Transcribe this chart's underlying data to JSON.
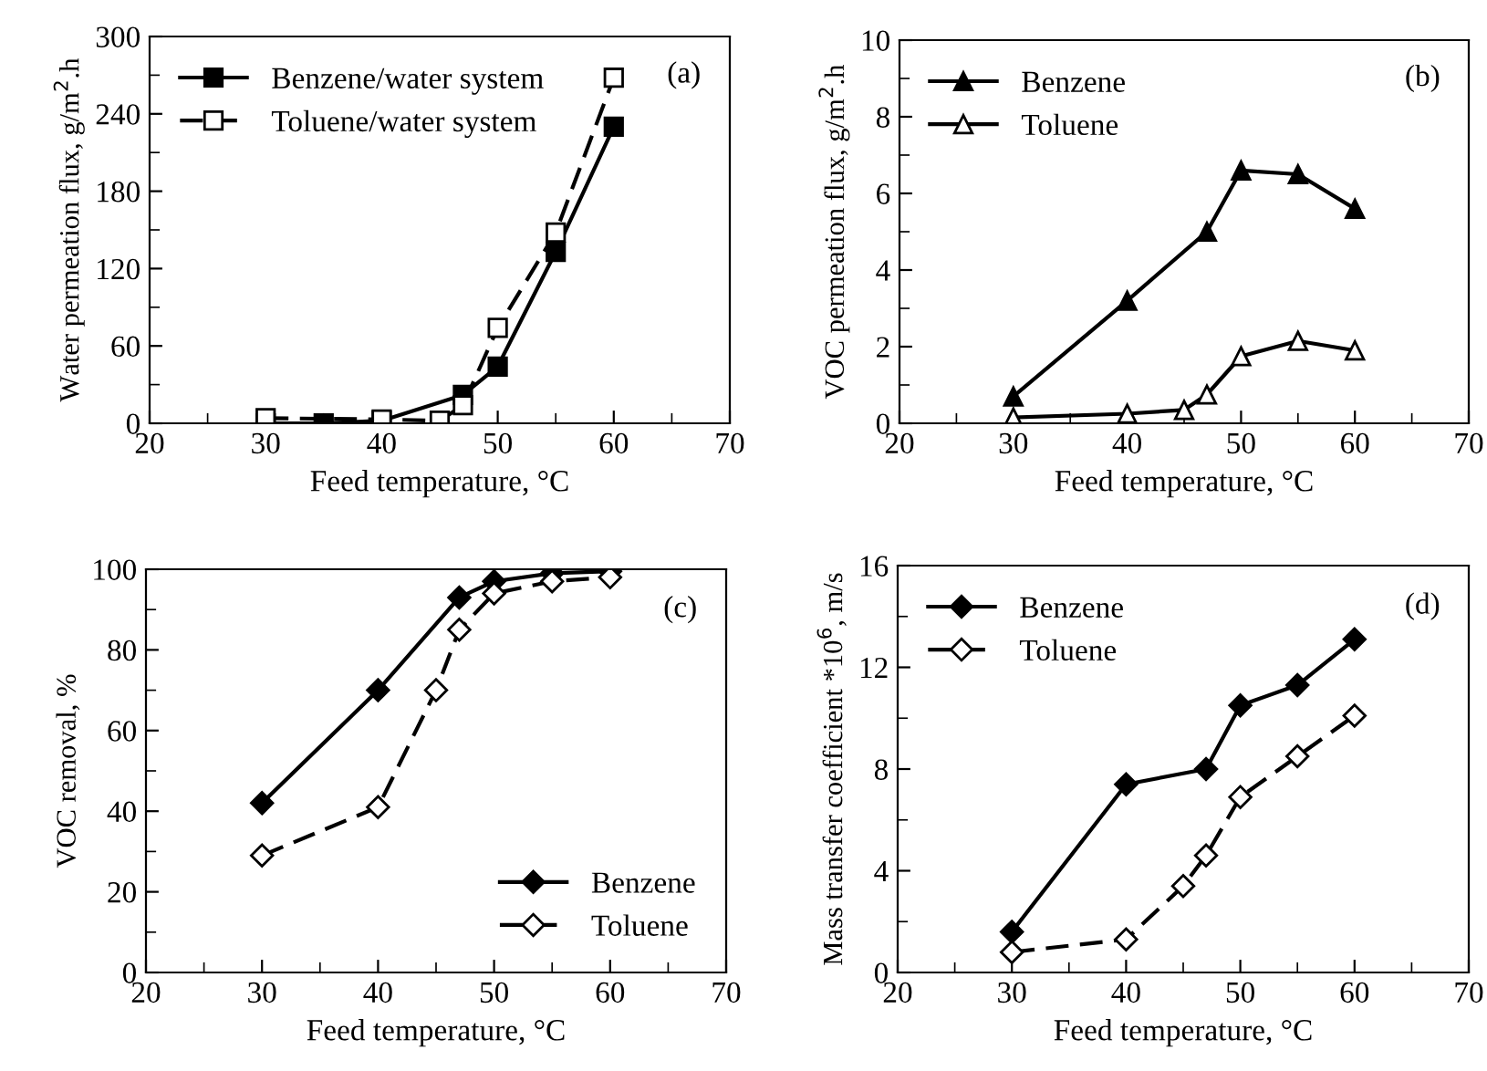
{
  "chart_data": [
    {
      "type": "line",
      "xlabel": "Feed temperature, °C",
      "ylabel": "Water permeation flux, g/m$^{2}$.h",
      "xlim": [
        20,
        70
      ],
      "xticks": [
        20,
        30,
        40,
        50,
        60,
        70
      ],
      "ylim": [
        0,
        300
      ],
      "yticks": [
        0,
        60,
        120,
        180,
        240,
        300
      ],
      "legend": "top left",
      "grid": false,
      "annotations": [
        "(a)"
      ],
      "series": [
        {
          "name": "Benzene/water system",
          "color": "#000000",
          "marker": "square",
          "line_style": "solid",
          "x": [
            30,
            35,
            40,
            47,
            50,
            55,
            60
          ],
          "values": [
            0,
            0,
            2,
            22,
            44,
            133,
            230
          ]
        },
        {
          "name": "Toluene/water system",
          "color": "#000000",
          "marker": "square",
          "line_style": "dashed",
          "x": [
            30,
            40,
            45,
            47,
            50,
            55,
            60
          ],
          "values": [
            4,
            3,
            2,
            14,
            74,
            148,
            268
          ]
        }
      ]
    },
    {
      "type": "line",
      "xlabel": "Feed temperature, °C",
      "ylabel": "VOC permeation flux, g/m$^{2}$.h",
      "xlim": [
        20,
        70
      ],
      "xticks": [
        20,
        30,
        40,
        50,
        60,
        70
      ],
      "ylim": [
        0,
        10
      ],
      "yticks": [
        0,
        2,
        4,
        6,
        8,
        10
      ],
      "legend": "top left",
      "grid": false,
      "annotations": [
        "(b)"
      ],
      "series": [
        {
          "name": "Benzene",
          "color": "#000000",
          "marker": "triangle",
          "line_style": "solid",
          "x": [
            30,
            40,
            47,
            50,
            55,
            60
          ],
          "values": [
            0.7,
            3.2,
            5.0,
            6.6,
            6.5,
            5.6
          ]
        },
        {
          "name": "Toluene",
          "color": "#000000",
          "marker": "triangle",
          "line_style": "solid",
          "x": [
            30,
            40,
            45,
            47,
            50,
            55,
            60
          ],
          "values": [
            0.15,
            0.25,
            0.35,
            0.75,
            1.75,
            2.15,
            1.9
          ]
        }
      ]
    },
    {
      "type": "line",
      "xlabel": "Feed temperature, °C",
      "ylabel": "VOC removal, %",
      "xlim": [
        20,
        70
      ],
      "xticks": [
        20,
        30,
        40,
        50,
        60,
        70
      ],
      "ylim": [
        0,
        100
      ],
      "yticks": [
        0,
        20,
        40,
        60,
        80,
        100
      ],
      "legend": "bottom right",
      "grid": false,
      "annotations": [
        "(c)"
      ],
      "series": [
        {
          "name": "Benzene",
          "color": "#000000",
          "marker": "diamond",
          "line_style": "solid",
          "x": [
            30,
            40,
            47,
            50,
            55,
            60
          ],
          "values": [
            42,
            70,
            93,
            97,
            99,
            99.5
          ]
        },
        {
          "name": "Toluene",
          "color": "#000000",
          "marker": "diamond",
          "line_style": "dashed",
          "x": [
            30,
            40,
            45,
            47,
            50,
            55,
            60
          ],
          "values": [
            29,
            41,
            70,
            85,
            94,
            97,
            98
          ]
        }
      ]
    },
    {
      "type": "line",
      "xlabel": "Feed temperature, °C",
      "ylabel": "Mass transfer coefficient *10$^{6}$, m/s",
      "xlim": [
        20,
        70
      ],
      "xticks": [
        20,
        30,
        40,
        50,
        60,
        70
      ],
      "ylim": [
        0,
        16
      ],
      "yticks": [
        0,
        4,
        8,
        12,
        16
      ],
      "legend": "top left",
      "grid": false,
      "annotations": [
        "(d)"
      ],
      "series": [
        {
          "name": "Benzene",
          "color": "#000000",
          "marker": "diamond",
          "line_style": "solid",
          "x": [
            30,
            40,
            47,
            50,
            55,
            60
          ],
          "values": [
            1.6,
            7.4,
            8.0,
            10.5,
            11.3,
            13.1
          ]
        },
        {
          "name": "Toluene",
          "color": "#000000",
          "marker": "diamond",
          "line_style": "dashed",
          "x": [
            30,
            40,
            45,
            47,
            50,
            55,
            60
          ],
          "values": [
            0.8,
            1.3,
            3.4,
            4.6,
            6.9,
            8.5,
            10.1
          ]
        }
      ]
    }
  ]
}
